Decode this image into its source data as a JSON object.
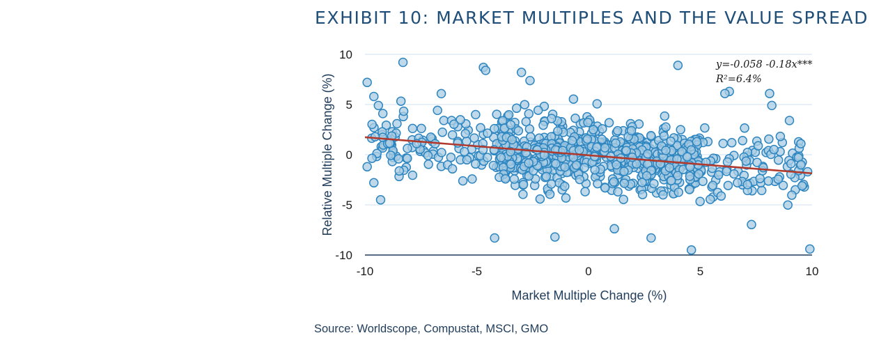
{
  "title": "EXHIBIT 10: MARKET MULTIPLES AND THE VALUE SPREAD",
  "source": "Source: Worldscope, Compustat, MSCI, GMO",
  "annotation": {
    "equation": "y=-0.058 -0.18x***",
    "r2": "R²=6.4%"
  },
  "colors": {
    "point_fill": "#a9cce3",
    "point_stroke": "#2e86c1",
    "trend": "#b03a2e",
    "grid": "#cfe2f0",
    "title": "#1f4e79"
  },
  "chart_data": {
    "type": "scatter",
    "title": "EXHIBIT 10: MARKET MULTIPLES AND THE VALUE SPREAD",
    "xlabel": "Market Multiple Change (%)",
    "ylabel": "Relative Multiple Change (%)",
    "xlim": [
      -10,
      10
    ],
    "ylim": [
      -10,
      10
    ],
    "xticks": [
      "-10",
      "-5",
      "0",
      "5",
      "10"
    ],
    "yticks": [
      "10",
      "5",
      "0",
      "-5",
      "-10"
    ],
    "grid": "horizontal",
    "trendline": {
      "intercept": -0.058,
      "slope": -0.18
    },
    "labeled_points": [
      [
        -8.3,
        9.2
      ],
      [
        -4.7,
        8.7
      ],
      [
        -4.6,
        8.4
      ],
      [
        -3.0,
        8.2
      ],
      [
        4.0,
        8.9
      ],
      [
        -9.9,
        7.2
      ],
      [
        -9.6,
        5.8
      ],
      [
        -9.4,
        4.9
      ],
      [
        -9.2,
        4.1
      ],
      [
        9.9,
        -9.4
      ],
      [
        4.6,
        -9.5
      ],
      [
        -4.2,
        -8.3
      ],
      [
        -1.5,
        -8.2
      ],
      [
        2.8,
        -8.3
      ],
      [
        -9.9,
        -1.2
      ],
      [
        -9.6,
        -2.8
      ],
      [
        -9.3,
        -4.5
      ],
      [
        9.8,
        -1.7
      ],
      [
        9.5,
        1.1
      ],
      [
        8.1,
        6.1
      ],
      [
        8.2,
        4.9
      ],
      [
        6.3,
        6.3
      ],
      [
        6.1,
        6.1
      ]
    ],
    "cloud": {
      "n": 880,
      "x_distribution": "approximately uniform, denser near 0 to 4",
      "y_distribution": "centered on the trendline, spread about ±3 with outliers to ±9"
    }
  }
}
